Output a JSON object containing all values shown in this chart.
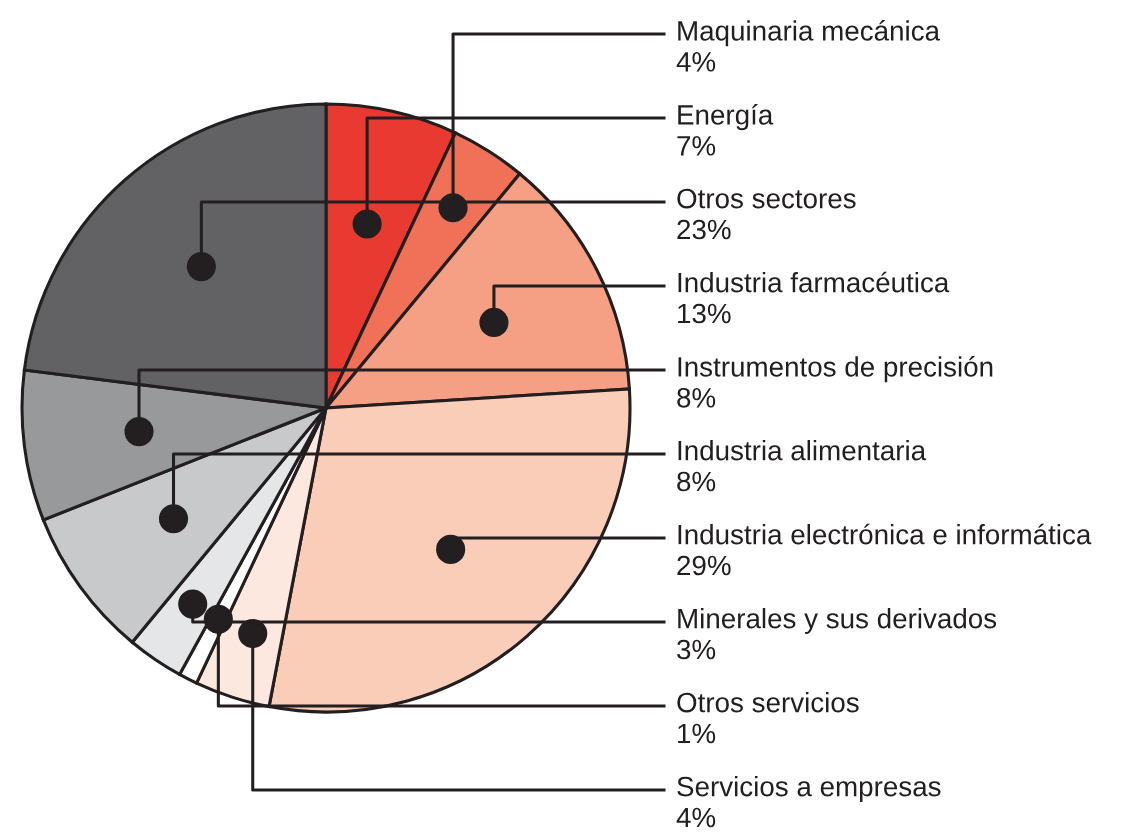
{
  "chart_data": {
    "type": "pie",
    "categories": [
      "Energía",
      "Maquinaria mecánica",
      "Industria farmacéutica",
      "Industria electrónica e informática",
      "Servicios a empresas",
      "Otros servicios",
      "Minerales y sus derivados",
      "Industria alimentaria",
      "Instrumentos de precisión",
      "Otros sectores"
    ],
    "values": [
      7,
      4,
      13,
      29,
      4,
      1,
      3,
      8,
      8,
      23
    ],
    "value_labels": [
      "7%",
      "4%",
      "13%",
      "29%",
      "4%",
      "1%",
      "3%",
      "8%",
      "8%",
      "23%"
    ],
    "colors": [
      "#e83a30",
      "#f07058",
      "#f5a085",
      "#f9cdb8",
      "#fde8df",
      "#ffffff",
      "#e5e6e8",
      "#c8c9cb",
      "#98999b",
      "#626264"
    ],
    "legend": false
  }
}
